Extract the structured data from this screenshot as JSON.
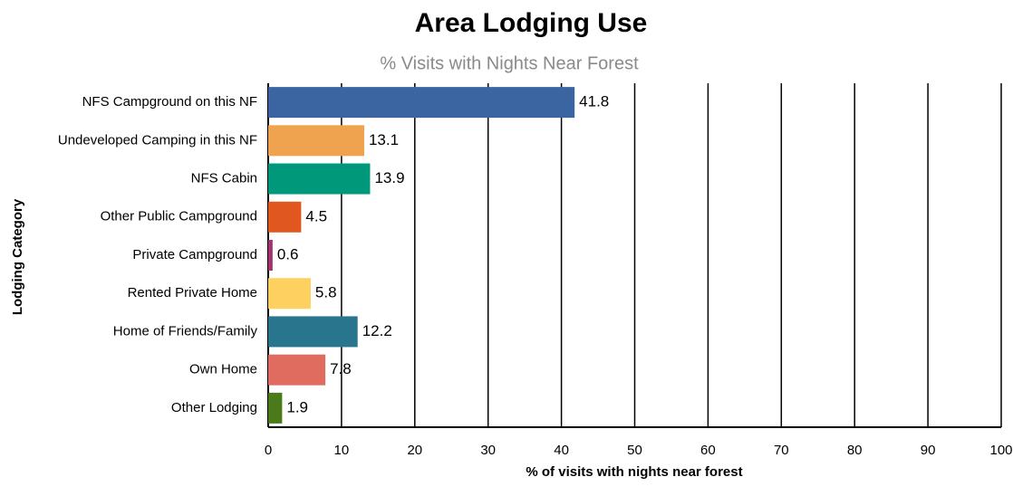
{
  "chart_data": {
    "type": "hbar",
    "title": "Area Lodging Use",
    "subtitle": "% Visits with Nights Near Forest",
    "x_label": "% of visits with nights near forest",
    "y_label": "Lodging Category",
    "categories": [
      "NFS Campground on this NF",
      "Undeveloped Camping in this NF",
      "NFS Cabin",
      "Other Public Campground",
      "Private Campground",
      "Rented Private Home",
      "Home of Friends/Family",
      "Own Home",
      "Other Lodging"
    ],
    "values": [
      41.8,
      13.1,
      13.9,
      4.5,
      0.6,
      5.8,
      12.2,
      7.8,
      1.9
    ],
    "colors": [
      "#3a65a0",
      "#f0a34f",
      "#00987a",
      "#e0581f",
      "#a63070",
      "#fdd060",
      "#2a758e",
      "#e06c60",
      "#4a7a1a"
    ],
    "xlim": [
      0,
      100
    ],
    "xticks": [
      0,
      10,
      20,
      30,
      40,
      50,
      60,
      70,
      80,
      90,
      100
    ],
    "grid": true
  }
}
